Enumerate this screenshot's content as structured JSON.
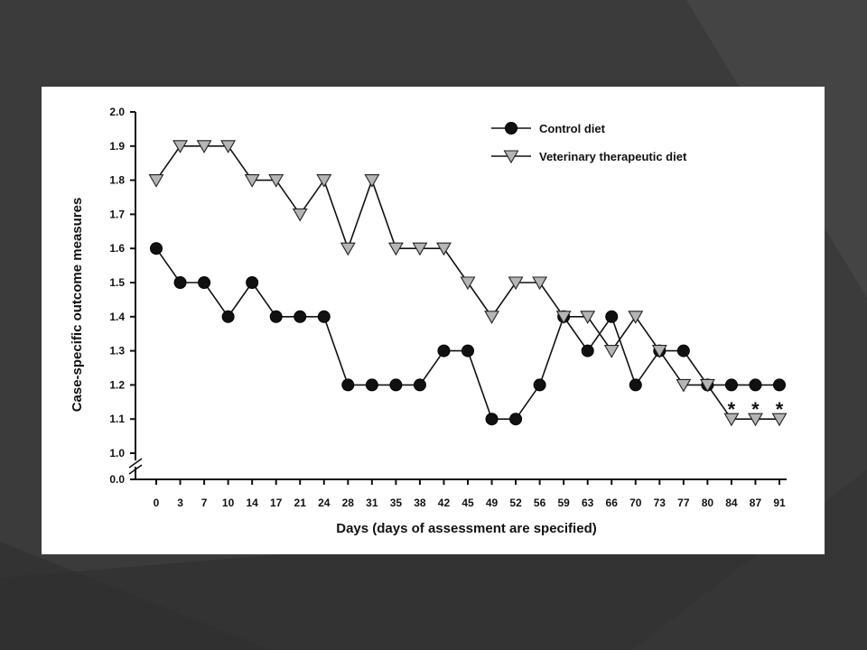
{
  "colors": {
    "background": "#3a3a3a",
    "card": "#ffffff",
    "control_marker": "#111111",
    "vet_marker": "#b5b5b5",
    "line": "#111111"
  },
  "chart_data": {
    "type": "line",
    "xlabel": "Days (days of assessment are specified)",
    "ylabel": "Case-specific outcome measures",
    "x_ticks": [
      0,
      3,
      7,
      10,
      14,
      17,
      21,
      24,
      28,
      31,
      35,
      38,
      42,
      45,
      49,
      52,
      56,
      59,
      63,
      66,
      70,
      73,
      77,
      80,
      84,
      87,
      91
    ],
    "y_ticks": [
      "1.0",
      "1.1",
      "1.2",
      "1.3",
      "1.4",
      "1.5",
      "1.6",
      "1.7",
      "1.8",
      "1.9",
      "2.0"
    ],
    "y_break_label": "0.0",
    "ylim": [
      1.0,
      2.0
    ],
    "axis_break": true,
    "grid": false,
    "legend_position": "top-right",
    "series": [
      {
        "name": "Control diet",
        "marker": "circle",
        "values": [
          1.6,
          1.5,
          1.5,
          1.4,
          1.5,
          1.4,
          1.4,
          1.4,
          1.2,
          1.2,
          1.2,
          1.2,
          1.3,
          1.3,
          1.1,
          1.1,
          1.2,
          1.4,
          1.3,
          1.4,
          1.2,
          1.3,
          1.3,
          1.2,
          1.2,
          1.2,
          1.2
        ]
      },
      {
        "name": "Veterinary therapeutic diet",
        "marker": "triangle-down",
        "values": [
          1.8,
          1.9,
          1.9,
          1.9,
          1.8,
          1.8,
          1.7,
          1.8,
          1.6,
          1.8,
          1.6,
          1.6,
          1.6,
          1.5,
          1.4,
          1.5,
          1.5,
          1.4,
          1.4,
          1.3,
          1.4,
          1.3,
          1.2,
          1.2,
          1.1,
          1.1,
          1.1
        ]
      }
    ],
    "annotations": [
      {
        "text": "*",
        "x": 84
      },
      {
        "text": "*",
        "x": 87
      },
      {
        "text": "*",
        "x": 91
      }
    ]
  }
}
